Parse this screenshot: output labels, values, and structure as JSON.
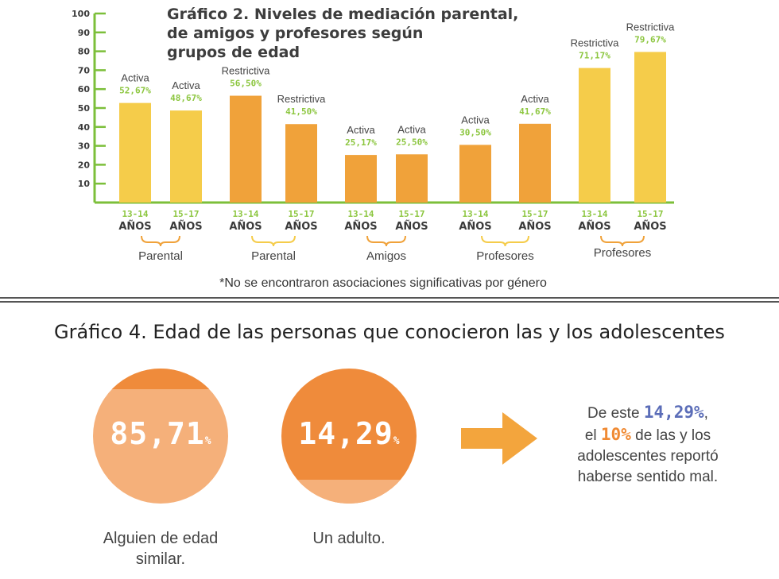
{
  "chart_data": [
    {
      "type": "bar",
      "title_lines": [
        "Gráfico 2. Niveles de mediación parental,",
        "de amigos y profesores según",
        "grupos de edad"
      ],
      "ylim": [
        0,
        100
      ],
      "yticks": [
        10,
        20,
        30,
        40,
        50,
        60,
        70,
        80,
        90,
        100
      ],
      "bars": [
        {
          "type_label": "Activa",
          "value_label": "52,67%",
          "value": 52.67,
          "age": "13-14",
          "anos": "AÑOS",
          "color": "#f5cc4a"
        },
        {
          "type_label": "Activa",
          "value_label": "48,67%",
          "value": 48.67,
          "age": "15-17",
          "anos": "AÑOS",
          "color": "#f5cc4a"
        },
        {
          "type_label": "Restrictiva",
          "value_label": "56,50%",
          "value": 56.5,
          "age": "13-14",
          "anos": "AÑOS",
          "color": "#f0a23a"
        },
        {
          "type_label": "Restrictiva",
          "value_label": "41,50%",
          "value": 41.5,
          "age": "15-17",
          "anos": "AÑOS",
          "color": "#f0a23a"
        },
        {
          "type_label": "Activa",
          "value_label": "25,17%",
          "value": 25.17,
          "age": "13-14",
          "anos": "AÑOS",
          "color": "#f0a23a"
        },
        {
          "type_label": "Activa",
          "value_label": "25,50%",
          "value": 25.5,
          "age": "15-17",
          "anos": "AÑOS",
          "color": "#f0a23a"
        },
        {
          "type_label": "Activa",
          "value_label": "30,50%",
          "value": 30.5,
          "age": "13-14",
          "anos": "AÑOS",
          "color": "#f0a23a"
        },
        {
          "type_label": "Activa",
          "value_label": "41,67%",
          "value": 41.67,
          "age": "15-17",
          "anos": "AÑOS",
          "color": "#f0a23a"
        },
        {
          "type_label": "Restrictiva",
          "value_label": "71,17%",
          "value": 71.17,
          "age": "13-14",
          "anos": "AÑOS",
          "color": "#f5cc4a"
        },
        {
          "type_label": "Restrictiva",
          "value_label": "79,67%",
          "value": 79.67,
          "age": "15-17",
          "anos": "AÑOS",
          "color": "#f5cc4a"
        }
      ],
      "groups": [
        {
          "label": "Parental",
          "color": "#f0a23a"
        },
        {
          "label": "Parental",
          "color": "#f5cc4a"
        },
        {
          "label": "Amigos",
          "color": "#f0a23a"
        },
        {
          "label": "Profesores",
          "color": "#f5cc4a"
        },
        {
          "label": "Profesores",
          "color": "#f0a23a"
        }
      ],
      "footnote": "*No se encontraron asociaciones significativas por género",
      "colors": {
        "axis": "#7cbf3a",
        "value_label": "#8cc63f"
      }
    },
    {
      "type": "pie",
      "title": "Gráfico 4. Edad de las personas que conocieron las y los adolescentes",
      "slices": [
        {
          "value": 85.71,
          "value_label": "85,71",
          "unit": "%",
          "label_lines": [
            "Alguien de edad",
            "similar."
          ],
          "color": "#f5b07a",
          "accent": "#ef8b3b"
        },
        {
          "value": 14.29,
          "value_label": "14,29",
          "unit": "%",
          "label_lines": [
            "Un adulto."
          ],
          "color": "#ef8b3b",
          "accent": "#f5b07a"
        }
      ]
    }
  ],
  "note": {
    "p1": "De este ",
    "v1": "14,29%",
    "p2": ",",
    "p3": "el ",
    "v2": "10%",
    "p4": " de las y los",
    "p5": "adolescentes reportó",
    "p6": "haberse sentido mal."
  },
  "colors": {
    "arrow": "#f3a53d",
    "divider": "#555555"
  }
}
